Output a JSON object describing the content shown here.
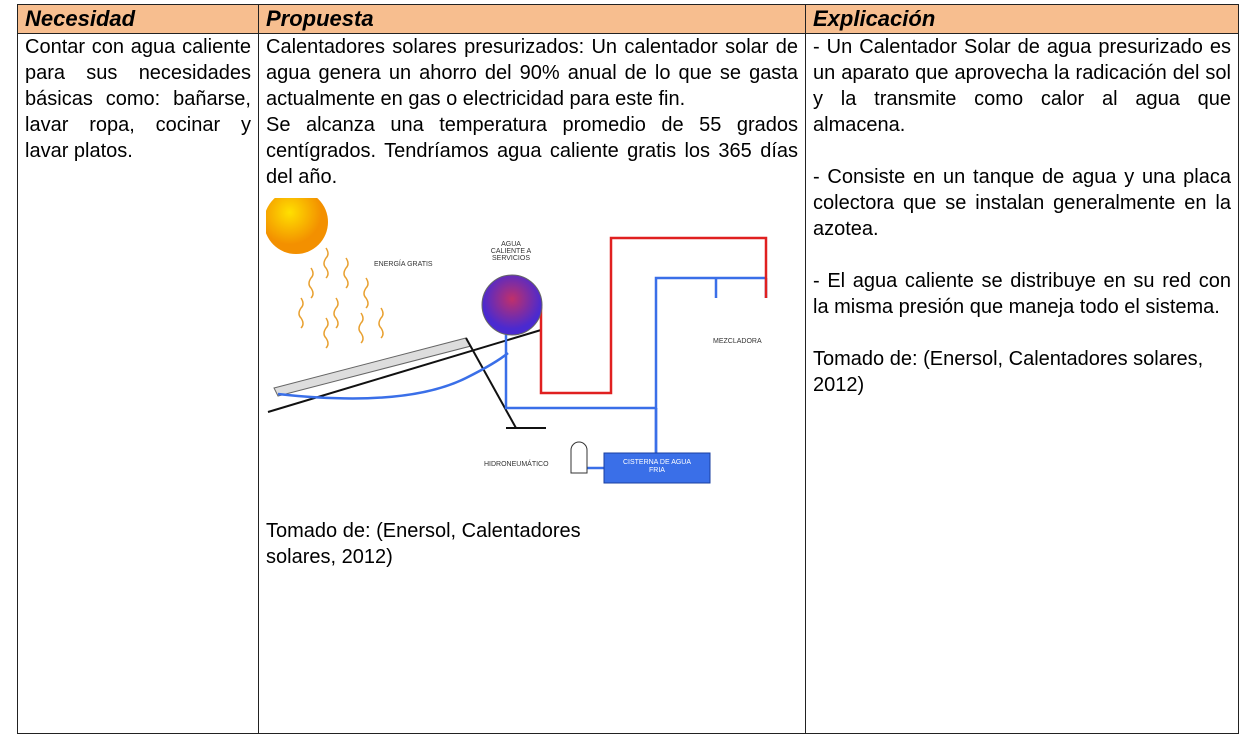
{
  "table": {
    "header": [
      "Necesidad",
      "Propuesta",
      "Explicación"
    ],
    "row": {
      "need": "Contar con agua caliente para sus necesidades básicas como: bañarse, lavar ropa, cocinar y lavar platos.",
      "proposal": {
        "paragraphs": [
          "Calentadores solares presurizados: Un calentador solar de agua genera un ahorro del 90% anual de lo que se gasta actualmente en gas o electricidad para este fin.",
          "Se alcanza una temperatura promedio de 55 grados centígrados. Tendríamos agua caliente gratis los 365 días del año."
        ],
        "figure": {
          "energy": "ENERGÍA GRATIS",
          "hot_water": [
            "AGUA",
            "CALIENTE A",
            "SERVICIOS"
          ],
          "mixer": "MEZCLADORA",
          "hydro": "HIDRONEUMÁTICO",
          "cistern": [
            "CISTERNA DE AGUA",
            "FRIA"
          ]
        },
        "caption": "Tomado de: (Enersol, Calentadores solares, 2012)"
      },
      "explanation": {
        "paragraphs": [
          "- Un Calentador Solar de agua presurizado es un aparato que aprovecha la radicación del sol y la transmite como calor al agua que almacena.",
          "- Consiste en un tanque de agua y una placa colectora que se instalan generalmente en la azotea.",
          "- El agua caliente se distribuye en su red con la misma presión que maneja todo el sistema."
        ],
        "source": "Tomado de: (Enersol, Calentadores solares, 2012)"
      }
    }
  }
}
